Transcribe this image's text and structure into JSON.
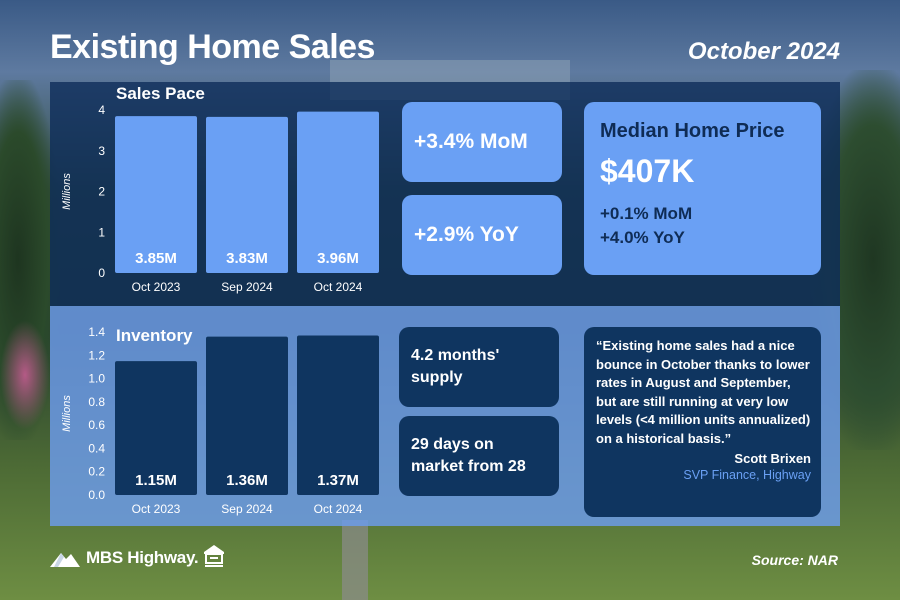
{
  "header": {
    "title": "Existing Home Sales",
    "date": "October 2024"
  },
  "chart_data": [
    {
      "type": "bar",
      "title": "Sales Pace",
      "ylabel": "Millions",
      "categories": [
        "Oct 2023",
        "Sep 2024",
        "Oct 2024"
      ],
      "values": [
        3.85,
        3.83,
        3.96
      ],
      "value_labels": [
        "3.85M",
        "3.83M",
        "3.96M"
      ],
      "ylim": [
        0,
        4
      ],
      "yticks": [
        "0",
        "1",
        "2",
        "3",
        "4"
      ],
      "bar_color": "#6aa0f4",
      "label_color": "#ffffff"
    },
    {
      "type": "bar",
      "title": "Inventory",
      "ylabel": "Millions",
      "categories": [
        "Oct 2023",
        "Sep 2024",
        "Oct 2024"
      ],
      "values": [
        1.15,
        1.36,
        1.37
      ],
      "value_labels": [
        "1.15M",
        "1.36M",
        "1.37M"
      ],
      "ylim": [
        0,
        1.4
      ],
      "yticks": [
        "0.0",
        "0.2",
        "0.4",
        "0.6",
        "0.8",
        "1.0",
        "1.2",
        "1.4"
      ],
      "bar_color": "#0f3560",
      "label_color": "#ffffff"
    }
  ],
  "sales_stats": {
    "mom": "+3.4% MoM",
    "yoy": "+2.9% YoY"
  },
  "median_price": {
    "heading": "Median Home Price",
    "value": "$407K",
    "mom": "+0.1% MoM",
    "yoy": "+4.0% YoY"
  },
  "inventory_stats": {
    "supply": "4.2 months' supply",
    "days": "29 days on market from 28"
  },
  "quote": {
    "text": "“Existing home sales had a nice bounce in October thanks to lower rates in August and September, but are still running at very low levels (<4 million units annualized) on a historical basis.”",
    "author": "Scott Brixen",
    "role": "SVP Finance, Highway"
  },
  "footer": {
    "logo_text": "MBS Highway.",
    "source": "Source: NAR"
  },
  "colors": {
    "dark_navy": "#0f3560",
    "light_blue": "#6aa0f4"
  }
}
